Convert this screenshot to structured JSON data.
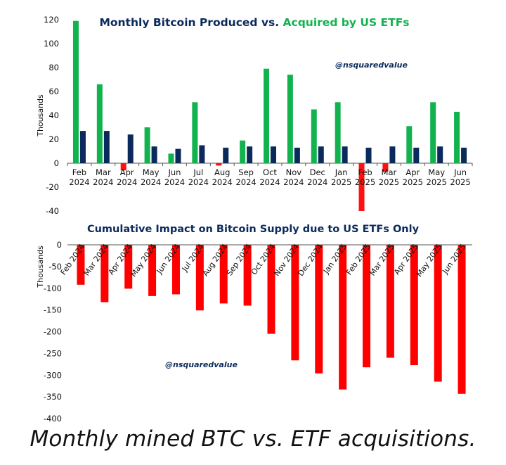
{
  "caption": "Monthly mined BTC vs. ETF acquisitions.",
  "watermark": "@nsquaredvalue",
  "colors": {
    "produced": "#0b2a5c",
    "acquired": "#12b34f",
    "negative": "#ff1111",
    "cumulative": "#ff0000",
    "title_dark": "#0b2a5c",
    "axis": "#333333"
  },
  "chart_data": [
    {
      "type": "bar",
      "title_part1": "Monthly Bitcoin Produced vs.",
      "title_part2": "Acquired by US ETFs",
      "ylabel": "Thousands",
      "ylim": [
        -40,
        120
      ],
      "yticks": [
        -40,
        -20,
        0,
        20,
        40,
        60,
        80,
        100,
        120
      ],
      "categories": [
        [
          "Feb",
          "2024"
        ],
        [
          "Mar",
          "2024"
        ],
        [
          "Apr",
          "2024"
        ],
        [
          "May",
          "2024"
        ],
        [
          "Jun",
          "2024"
        ],
        [
          "Jul",
          "2024"
        ],
        [
          "Aug",
          "2024"
        ],
        [
          "Sep",
          "2024"
        ],
        [
          "Oct",
          "2024"
        ],
        [
          "Nov",
          "2024"
        ],
        [
          "Dec",
          "2024"
        ],
        [
          "Jan",
          "2025"
        ],
        [
          "Feb",
          "2025"
        ],
        [
          "Mar",
          "2025"
        ],
        [
          "Apr",
          "2025"
        ],
        [
          "May",
          "2025"
        ],
        [
          "Jun",
          "2025"
        ]
      ],
      "series": [
        {
          "key": "acquired",
          "values": [
            119,
            66,
            -6,
            30,
            8,
            51,
            -2,
            19,
            79,
            74,
            45,
            51,
            -40,
            -7,
            31,
            51,
            43
          ]
        },
        {
          "key": "produced",
          "values": [
            27,
            27,
            24,
            14,
            12,
            15,
            13,
            14,
            14,
            13,
            14,
            14,
            13,
            14,
            13,
            14,
            13
          ]
        }
      ]
    },
    {
      "type": "bar",
      "title": "Cumulative Impact on Bitcoin Supply due to US ETFs Only",
      "ylabel": "Thousands",
      "ylim": [
        -400,
        0
      ],
      "yticks": [
        0,
        -50,
        -100,
        -150,
        -200,
        -250,
        -300,
        -350,
        -400
      ],
      "categories": [
        "Feb 2024",
        "Mar 2024",
        "Apr 2024",
        "May 2024",
        "Jun 2024",
        "Jul 2024",
        "Aug 2024",
        "Sep 2024",
        "Oct 2024",
        "Nov 2024",
        "Dec 2024",
        "Jan 2025",
        "Feb 2025",
        "Mar 2025",
        "Apr 2025",
        "May 2025",
        "Jun 2025"
      ],
      "values": [
        -92,
        -132,
        -101,
        -118,
        -114,
        -151,
        -135,
        -140,
        -205,
        -266,
        -296,
        -333,
        -282,
        -260,
        -277,
        -315,
        -343
      ]
    }
  ]
}
